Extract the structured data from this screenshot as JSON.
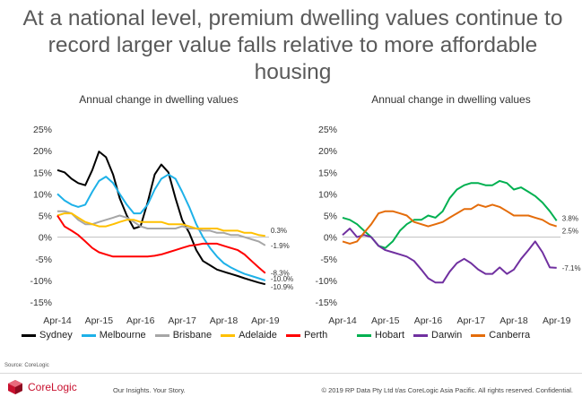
{
  "headline": "At a national level, premium dwelling values continue to record larger value falls relative to more affordable housing",
  "source": "Source: CoreLogic",
  "footer": {
    "brand": "CoreLogic",
    "tagline": "Our Insights. Your Story.",
    "copyright": "© 2019 RP Data Pty Ltd t/as CoreLogic Asia Pacific. All rights reserved. Confidential."
  },
  "chart_data": [
    {
      "type": "line",
      "title": "Annual change in dwelling values",
      "xlabel": "",
      "ylabel": "",
      "x_ticks": [
        "Apr-14",
        "Apr-15",
        "Apr-16",
        "Apr-17",
        "Apr-18",
        "Apr-19"
      ],
      "y_ticks": [
        "25%",
        "20%",
        "15%",
        "10%",
        "5%",
        "0%",
        "-5%",
        "-10%",
        "-15%"
      ],
      "ylim": [
        -15,
        25
      ],
      "x_range": [
        2014.33,
        2019.42
      ],
      "legend_position": "bottom",
      "grid": false,
      "series": [
        {
          "name": "Sydney",
          "color": "#000000",
          "x": [
            2014.33,
            2014.5,
            2014.67,
            2014.83,
            2015.0,
            2015.17,
            2015.33,
            2015.5,
            2015.67,
            2015.83,
            2016.0,
            2016.17,
            2016.33,
            2016.5,
            2016.67,
            2016.83,
            2017.0,
            2017.17,
            2017.33,
            2017.5,
            2017.67,
            2017.83,
            2018.0,
            2018.17,
            2018.33,
            2018.5,
            2018.67,
            2018.83,
            2019.0,
            2019.17,
            2019.33
          ],
          "y": [
            15.5,
            15.0,
            13.5,
            12.5,
            12.0,
            15.5,
            19.8,
            18.5,
            14.5,
            9.0,
            5.0,
            2.0,
            2.5,
            8.0,
            14.5,
            16.8,
            15.0,
            9.0,
            4.0,
            1.0,
            -3.0,
            -5.5,
            -6.5,
            -7.5,
            -8.0,
            -8.5,
            -9.0,
            -9.5,
            -10.0,
            -10.5,
            -10.9
          ],
          "end_label": "-10.9%"
        },
        {
          "name": "Melbourne",
          "color": "#1eb1e8",
          "x": [
            2014.33,
            2014.5,
            2014.67,
            2014.83,
            2015.0,
            2015.17,
            2015.33,
            2015.5,
            2015.67,
            2015.83,
            2016.0,
            2016.17,
            2016.33,
            2016.5,
            2016.67,
            2016.83,
            2017.0,
            2017.17,
            2017.33,
            2017.5,
            2017.67,
            2017.83,
            2018.0,
            2018.17,
            2018.33,
            2018.5,
            2018.67,
            2018.83,
            2019.0,
            2019.17,
            2019.33
          ],
          "y": [
            10.0,
            8.5,
            7.5,
            7.0,
            7.5,
            10.5,
            13.0,
            14.0,
            12.5,
            10.0,
            7.5,
            5.5,
            5.5,
            7.5,
            11.0,
            13.5,
            14.5,
            13.5,
            10.5,
            7.0,
            3.0,
            0.0,
            -2.5,
            -4.5,
            -6.0,
            -7.0,
            -7.8,
            -8.5,
            -9.0,
            -9.5,
            -10.0
          ],
          "end_label": "-10.0%"
        },
        {
          "name": "Brisbane",
          "color": "#a6a6a6",
          "x": [
            2014.33,
            2014.5,
            2014.67,
            2014.83,
            2015.0,
            2015.17,
            2015.33,
            2015.5,
            2015.67,
            2015.83,
            2016.0,
            2016.17,
            2016.33,
            2016.5,
            2016.67,
            2016.83,
            2017.0,
            2017.17,
            2017.33,
            2017.5,
            2017.67,
            2017.83,
            2018.0,
            2018.17,
            2018.33,
            2018.5,
            2018.67,
            2018.83,
            2019.0,
            2019.17,
            2019.33
          ],
          "y": [
            6.0,
            6.0,
            5.5,
            4.0,
            3.0,
            3.0,
            3.5,
            4.0,
            4.5,
            5.0,
            4.5,
            3.5,
            2.5,
            2.0,
            2.0,
            2.0,
            2.0,
            2.0,
            2.5,
            2.0,
            2.0,
            1.5,
            1.5,
            1.0,
            1.0,
            0.5,
            0.5,
            0.0,
            -0.5,
            -1.0,
            -1.9
          ],
          "end_label": "-1.9%"
        },
        {
          "name": "Adelaide",
          "color": "#ffc000",
          "x": [
            2014.33,
            2014.5,
            2014.67,
            2014.83,
            2015.0,
            2015.17,
            2015.33,
            2015.5,
            2015.67,
            2015.83,
            2016.0,
            2016.17,
            2016.33,
            2016.5,
            2016.67,
            2016.83,
            2017.0,
            2017.17,
            2017.33,
            2017.5,
            2017.67,
            2017.83,
            2018.0,
            2018.17,
            2018.33,
            2018.5,
            2018.67,
            2018.83,
            2019.0,
            2019.17,
            2019.33
          ],
          "y": [
            5.0,
            5.5,
            5.5,
            4.5,
            3.5,
            3.0,
            2.5,
            2.5,
            3.0,
            3.5,
            4.0,
            4.0,
            3.5,
            3.5,
            3.5,
            3.5,
            3.0,
            3.0,
            3.0,
            2.5,
            2.0,
            2.0,
            2.0,
            2.0,
            1.5,
            1.5,
            1.5,
            1.0,
            1.0,
            0.5,
            0.3
          ],
          "end_label": "0.3%"
        },
        {
          "name": "Perth",
          "color": "#ff0000",
          "x": [
            2014.33,
            2014.5,
            2014.67,
            2014.83,
            2015.0,
            2015.17,
            2015.33,
            2015.5,
            2015.67,
            2015.83,
            2016.0,
            2016.17,
            2016.33,
            2016.5,
            2016.67,
            2016.83,
            2017.0,
            2017.17,
            2017.33,
            2017.5,
            2017.67,
            2017.83,
            2018.0,
            2018.17,
            2018.33,
            2018.5,
            2018.67,
            2018.83,
            2019.0,
            2019.17,
            2019.33
          ],
          "y": [
            5.0,
            2.5,
            1.5,
            0.5,
            -1.0,
            -2.5,
            -3.5,
            -4.0,
            -4.5,
            -4.5,
            -4.5,
            -4.5,
            -4.5,
            -4.5,
            -4.3,
            -4.0,
            -3.5,
            -3.0,
            -2.5,
            -2.0,
            -1.8,
            -1.5,
            -1.5,
            -1.5,
            -2.0,
            -2.5,
            -3.0,
            -4.0,
            -5.5,
            -7.0,
            -8.3
          ],
          "end_label": "-8.3%"
        }
      ]
    },
    {
      "type": "line",
      "title": "Annual change in dwelling values",
      "xlabel": "",
      "ylabel": "",
      "x_ticks": [
        "Apr-14",
        "Apr-15",
        "Apr-16",
        "Apr-17",
        "Apr-18",
        "Apr-19"
      ],
      "y_ticks": [
        "25%",
        "20%",
        "15%",
        "10%",
        "5%",
        "0%",
        "-5%",
        "-10%",
        "-15%"
      ],
      "ylim": [
        -15,
        25
      ],
      "x_range": [
        2014.33,
        2019.42
      ],
      "legend_position": "bottom",
      "grid": false,
      "series": [
        {
          "name": "Hobart",
          "color": "#00b050",
          "x": [
            2014.33,
            2014.5,
            2014.67,
            2014.83,
            2015.0,
            2015.17,
            2015.33,
            2015.5,
            2015.67,
            2015.83,
            2016.0,
            2016.17,
            2016.33,
            2016.5,
            2016.67,
            2016.83,
            2017.0,
            2017.17,
            2017.33,
            2017.5,
            2017.67,
            2017.83,
            2018.0,
            2018.17,
            2018.33,
            2018.5,
            2018.67,
            2018.83,
            2019.0,
            2019.17,
            2019.33
          ],
          "y": [
            4.5,
            4.0,
            3.0,
            1.5,
            0.0,
            -2.0,
            -2.5,
            -1.0,
            1.5,
            3.0,
            4.0,
            4.0,
            5.0,
            4.5,
            6.0,
            9.0,
            11.0,
            12.0,
            12.5,
            12.5,
            12.0,
            12.0,
            13.0,
            12.5,
            11.0,
            11.5,
            10.5,
            9.5,
            8.0,
            6.0,
            3.8
          ],
          "end_label": "3.8%"
        },
        {
          "name": "Darwin",
          "color": "#7030a0",
          "x": [
            2014.33,
            2014.5,
            2014.67,
            2014.83,
            2015.0,
            2015.17,
            2015.33,
            2015.5,
            2015.67,
            2015.83,
            2016.0,
            2016.17,
            2016.33,
            2016.5,
            2016.67,
            2016.83,
            2017.0,
            2017.17,
            2017.33,
            2017.5,
            2017.67,
            2017.83,
            2018.0,
            2018.17,
            2018.33,
            2018.5,
            2018.67,
            2018.83,
            2019.0,
            2019.17,
            2019.33
          ],
          "y": [
            0.5,
            2.0,
            0.0,
            0.5,
            0.0,
            -2.0,
            -3.0,
            -3.5,
            -4.0,
            -4.5,
            -5.5,
            -7.5,
            -9.5,
            -10.5,
            -10.5,
            -8.0,
            -6.0,
            -5.0,
            -6.0,
            -7.5,
            -8.5,
            -8.5,
            -7.0,
            -8.5,
            -7.5,
            -5.0,
            -3.0,
            -1.0,
            -3.5,
            -7.0,
            -7.1
          ],
          "end_label": "-7.1%"
        },
        {
          "name": "Canberra",
          "color": "#e46c0a",
          "x": [
            2014.33,
            2014.5,
            2014.67,
            2014.83,
            2015.0,
            2015.17,
            2015.33,
            2015.5,
            2015.67,
            2015.83,
            2016.0,
            2016.17,
            2016.33,
            2016.5,
            2016.67,
            2016.83,
            2017.0,
            2017.17,
            2017.33,
            2017.5,
            2017.67,
            2017.83,
            2018.0,
            2018.17,
            2018.33,
            2018.5,
            2018.67,
            2018.83,
            2019.0,
            2019.17,
            2019.33
          ],
          "y": [
            -1.0,
            -1.5,
            -1.0,
            1.0,
            3.0,
            5.5,
            6.0,
            6.0,
            5.5,
            5.0,
            3.5,
            3.0,
            2.5,
            3.0,
            3.5,
            4.5,
            5.5,
            6.5,
            6.5,
            7.5,
            7.0,
            7.5,
            7.0,
            6.0,
            5.0,
            5.0,
            5.0,
            4.5,
            4.0,
            3.0,
            2.5
          ],
          "end_label": "2.5%"
        }
      ]
    }
  ]
}
